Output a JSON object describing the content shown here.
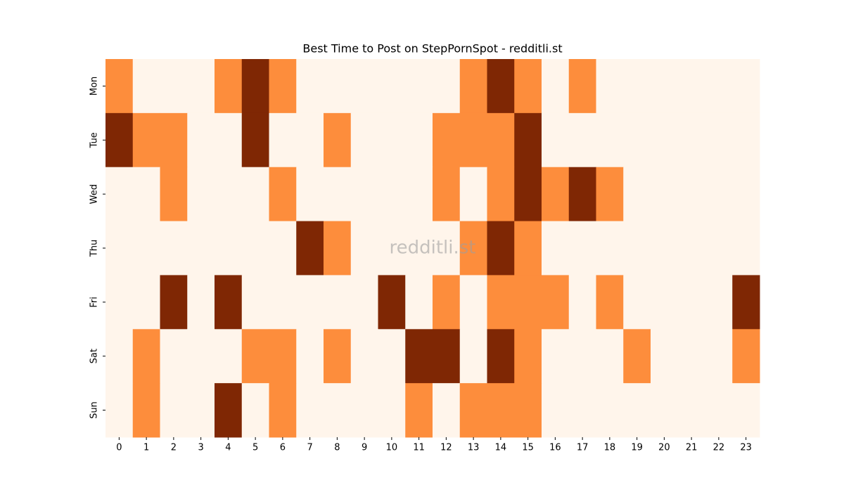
{
  "chart_data": {
    "type": "heatmap",
    "title": "Best Time to Post on StepPornSpot - redditli.st",
    "watermark": "redditli.st",
    "x_categories": [
      0,
      1,
      2,
      3,
      4,
      5,
      6,
      7,
      8,
      9,
      10,
      11,
      12,
      13,
      14,
      15,
      16,
      17,
      18,
      19,
      20,
      21,
      22,
      23
    ],
    "y_categories": [
      "Mon",
      "Tue",
      "Wed",
      "Thu",
      "Fri",
      "Sat",
      "Sun"
    ],
    "values": [
      [
        1,
        0,
        0,
        0,
        1,
        2,
        1,
        0,
        0,
        0,
        0,
        0,
        0,
        1,
        2,
        1,
        0,
        1,
        0,
        0,
        0,
        0,
        0,
        0
      ],
      [
        2,
        1,
        1,
        0,
        0,
        2,
        0,
        0,
        1,
        0,
        0,
        0,
        1,
        1,
        1,
        2,
        0,
        0,
        0,
        0,
        0,
        0,
        0,
        0
      ],
      [
        0,
        0,
        1,
        0,
        0,
        0,
        1,
        0,
        0,
        0,
        0,
        0,
        1,
        0,
        1,
        2,
        1,
        2,
        1,
        0,
        0,
        0,
        0,
        0
      ],
      [
        0,
        0,
        0,
        0,
        0,
        0,
        0,
        2,
        1,
        0,
        0,
        0,
        0,
        1,
        2,
        1,
        0,
        0,
        0,
        0,
        0,
        0,
        0,
        0
      ],
      [
        0,
        0,
        2,
        0,
        2,
        0,
        0,
        0,
        0,
        0,
        2,
        0,
        1,
        0,
        1,
        1,
        1,
        0,
        1,
        0,
        0,
        0,
        0,
        2
      ],
      [
        0,
        1,
        0,
        0,
        0,
        1,
        1,
        0,
        1,
        0,
        0,
        2,
        2,
        0,
        2,
        1,
        0,
        0,
        0,
        1,
        0,
        0,
        0,
        1
      ],
      [
        0,
        1,
        0,
        0,
        2,
        0,
        1,
        0,
        0,
        0,
        0,
        1,
        0,
        1,
        1,
        1,
        0,
        0,
        0,
        0,
        0,
        0,
        0,
        0
      ]
    ],
    "vmin": 0,
    "vmax": 2,
    "colormap": [
      "#fff5eb",
      "#fd8d3c",
      "#7f2704"
    ]
  }
}
